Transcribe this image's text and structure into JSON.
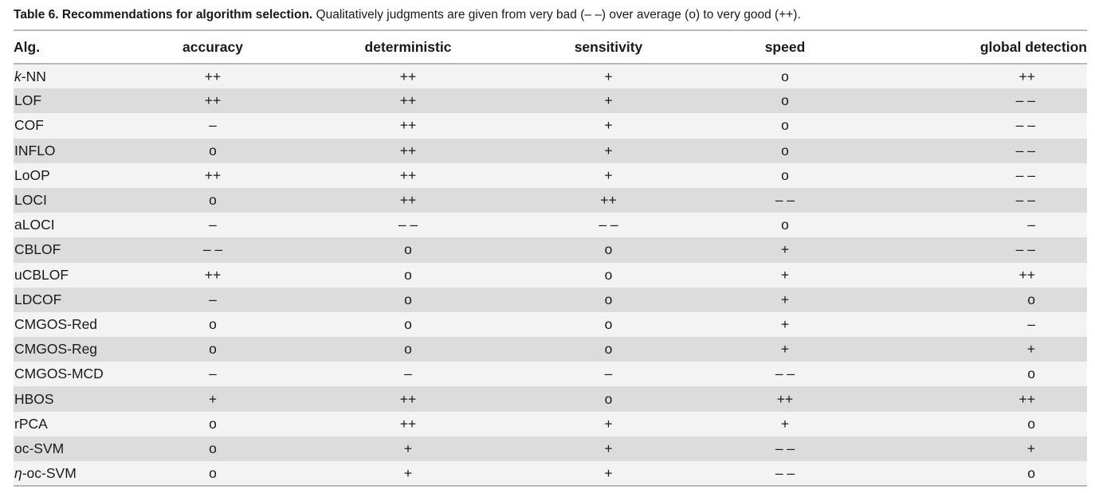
{
  "caption": {
    "label": "Table 6. Recommendations for algorithm selection.",
    "text": " Qualitatively judgments are given from very bad (– –) over average (o) to very good (++)."
  },
  "table": {
    "headers": [
      "Alg.",
      "accuracy",
      "deterministic",
      "sensitivity",
      "speed",
      "global detection"
    ],
    "rows": [
      {
        "alg_prefix": "k",
        "alg": "-NN",
        "accuracy": "++",
        "deterministic": "++",
        "sensitivity": "+",
        "speed": "o",
        "global": "++"
      },
      {
        "alg_prefix": "",
        "alg": "LOF",
        "accuracy": "++",
        "deterministic": "++",
        "sensitivity": "+",
        "speed": "o",
        "global": "– –"
      },
      {
        "alg_prefix": "",
        "alg": "COF",
        "accuracy": "–",
        "deterministic": "++",
        "sensitivity": "+",
        "speed": "o",
        "global": "– –"
      },
      {
        "alg_prefix": "",
        "alg": "INFLO",
        "accuracy": "o",
        "deterministic": "++",
        "sensitivity": "+",
        "speed": "o",
        "global": "– –"
      },
      {
        "alg_prefix": "",
        "alg": "LoOP",
        "accuracy": "++",
        "deterministic": "++",
        "sensitivity": "+",
        "speed": "o",
        "global": "– –"
      },
      {
        "alg_prefix": "",
        "alg": "LOCI",
        "accuracy": "o",
        "deterministic": "++",
        "sensitivity": "++",
        "speed": "– –",
        "global": "– –"
      },
      {
        "alg_prefix": "",
        "alg": "aLOCI",
        "accuracy": "–",
        "deterministic": "– –",
        "sensitivity": "– –",
        "speed": "o",
        "global": "–"
      },
      {
        "alg_prefix": "",
        "alg": "CBLOF",
        "accuracy": "– –",
        "deterministic": "o",
        "sensitivity": "o",
        "speed": "+",
        "global": "– –"
      },
      {
        "alg_prefix": "",
        "alg": "uCBLOF",
        "accuracy": "++",
        "deterministic": "o",
        "sensitivity": "o",
        "speed": "+",
        "global": "++"
      },
      {
        "alg_prefix": "",
        "alg": "LDCOF",
        "accuracy": "–",
        "deterministic": "o",
        "sensitivity": "o",
        "speed": "+",
        "global": "o"
      },
      {
        "alg_prefix": "",
        "alg": "CMGOS-Red",
        "accuracy": "o",
        "deterministic": "o",
        "sensitivity": "o",
        "speed": "+",
        "global": "–"
      },
      {
        "alg_prefix": "",
        "alg": "CMGOS-Reg",
        "accuracy": "o",
        "deterministic": "o",
        "sensitivity": "o",
        "speed": "+",
        "global": "+"
      },
      {
        "alg_prefix": "",
        "alg": "CMGOS-MCD",
        "accuracy": "–",
        "deterministic": "–",
        "sensitivity": "–",
        "speed": "– –",
        "global": "o"
      },
      {
        "alg_prefix": "",
        "alg": "HBOS",
        "accuracy": "+",
        "deterministic": "++",
        "sensitivity": "o",
        "speed": "++",
        "global": "++"
      },
      {
        "alg_prefix": "",
        "alg": "rPCA",
        "accuracy": "o",
        "deterministic": "++",
        "sensitivity": "+",
        "speed": "+",
        "global": "o"
      },
      {
        "alg_prefix": "",
        "alg": "oc-SVM",
        "accuracy": "o",
        "deterministic": "+",
        "sensitivity": "+",
        "speed": "– –",
        "global": "+"
      },
      {
        "alg_prefix": "η",
        "alg": "-oc-SVM",
        "accuracy": "o",
        "deterministic": "+",
        "sensitivity": "+",
        "speed": "– –",
        "global": "o"
      }
    ]
  },
  "colors": {
    "row_light": "#f3f3f3",
    "row_dark": "#dcdcdc",
    "rule": "#b9b9b9",
    "text": "#1a1a1a"
  }
}
